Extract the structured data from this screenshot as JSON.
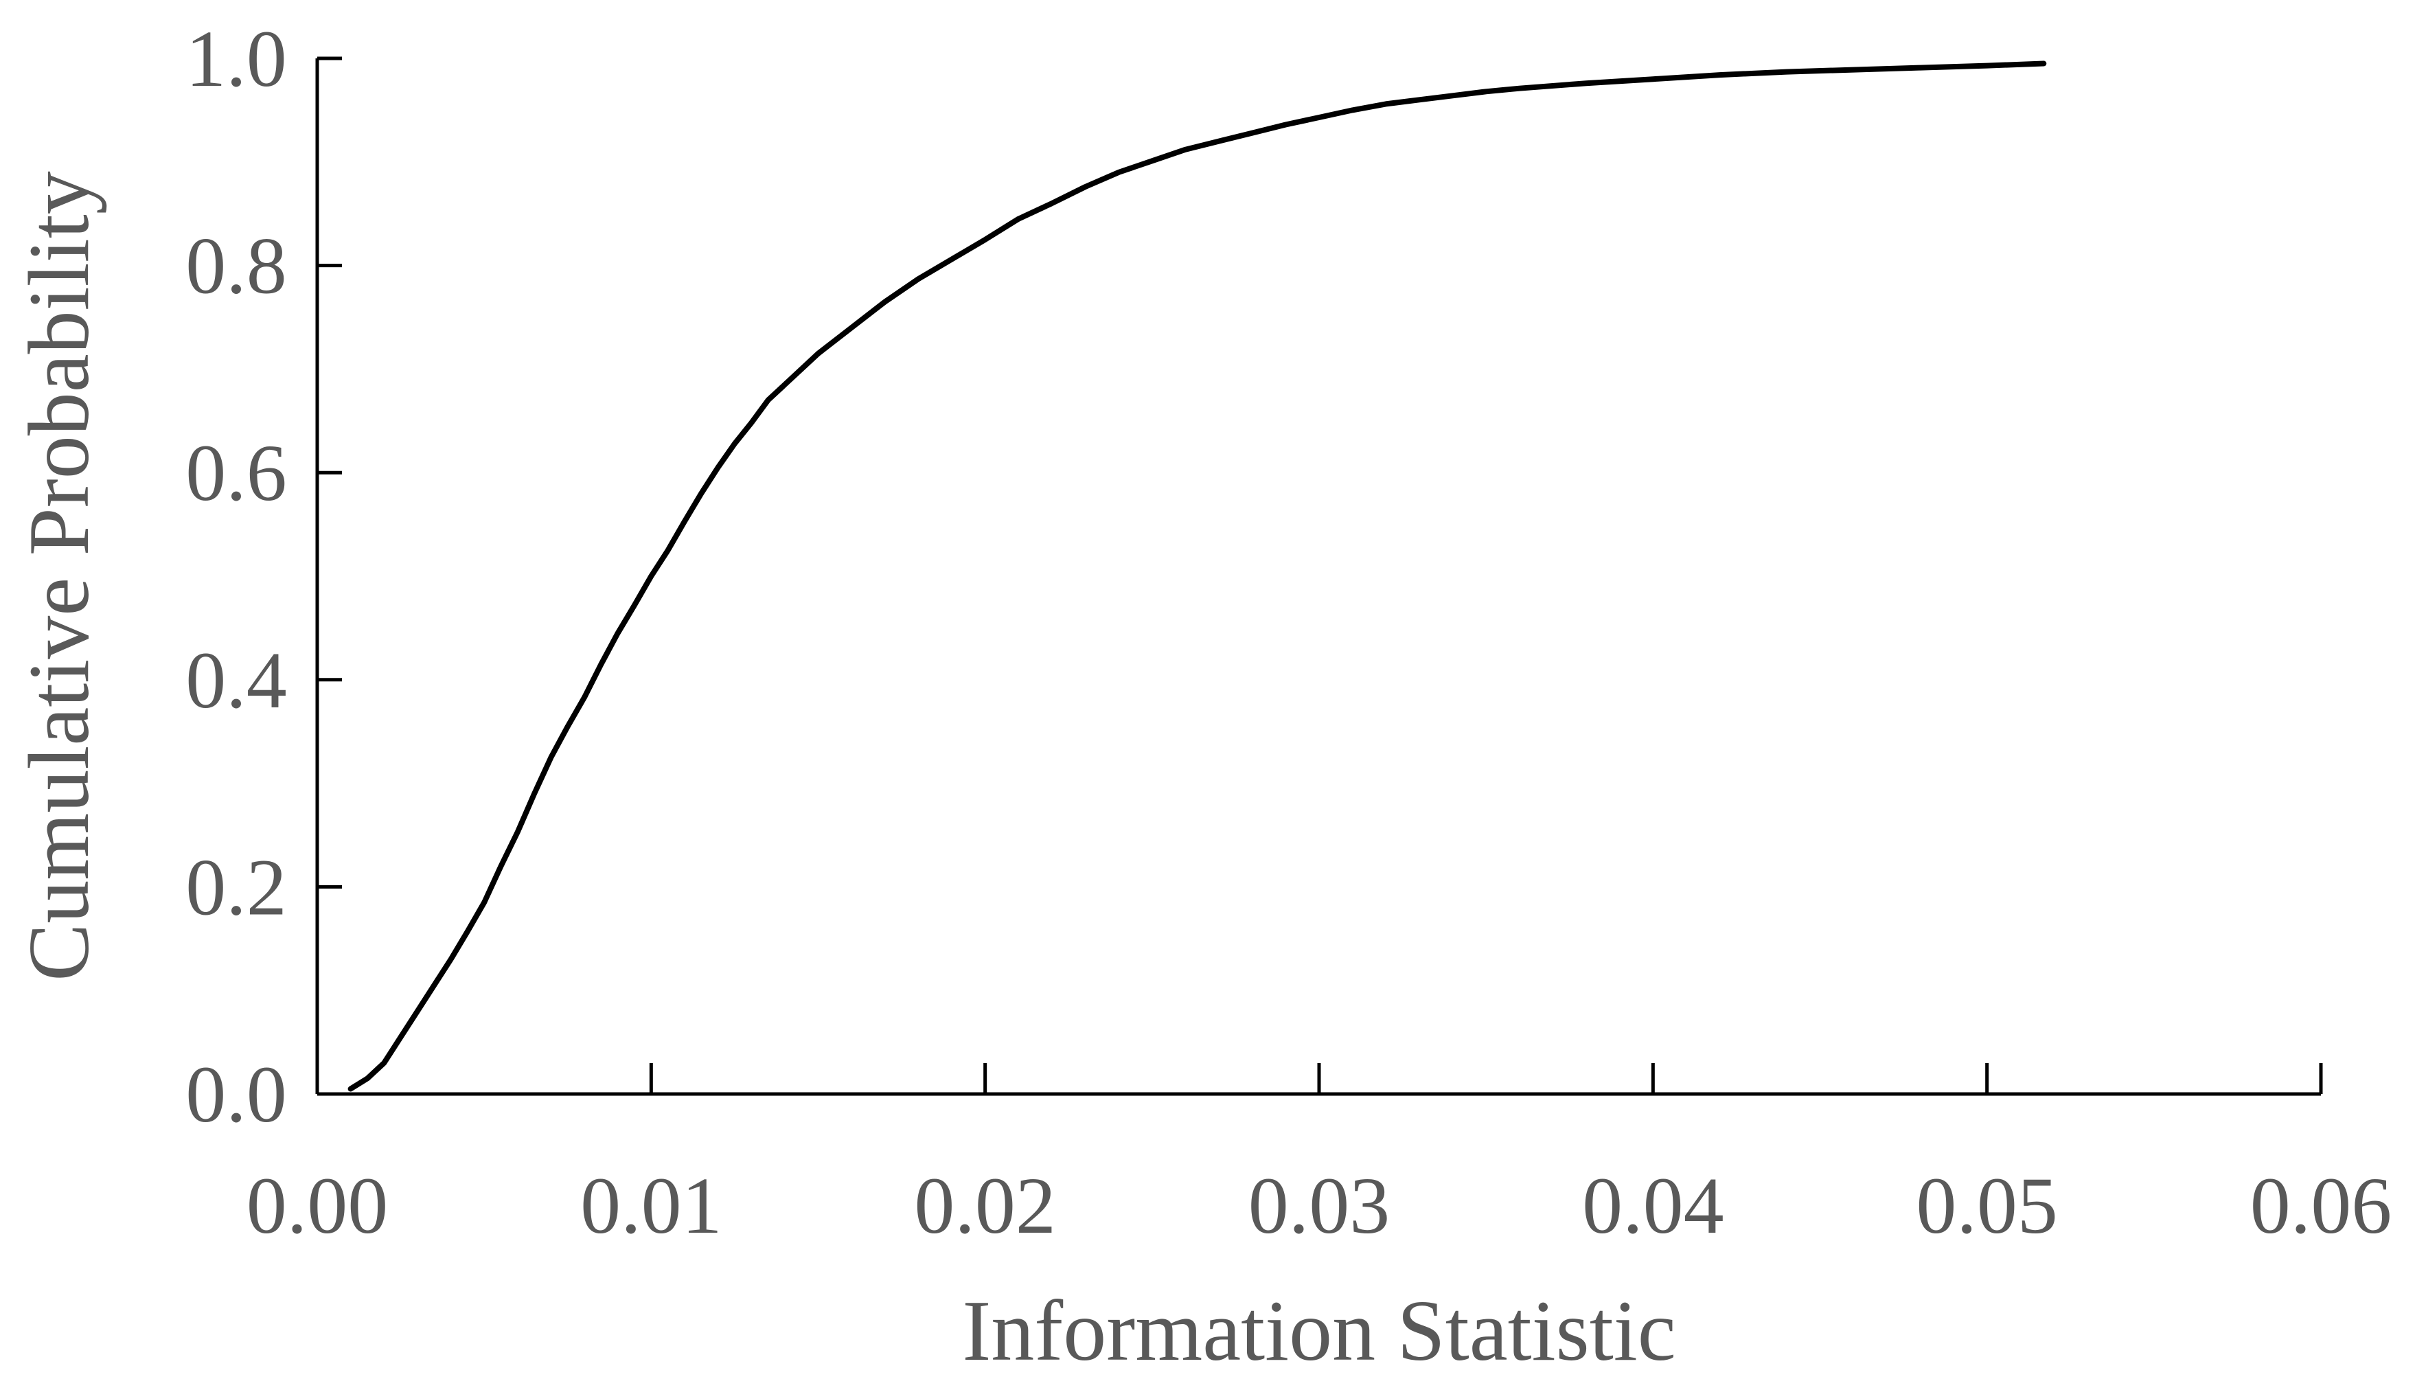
{
  "chart_data": {
    "type": "line",
    "title": "",
    "xlabel": "Information Statistic",
    "ylabel": "Cumulative Probability",
    "xlim": [
      0,
      0.06
    ],
    "ylim": [
      0,
      1.0
    ],
    "x_ticks": [
      0,
      0.01,
      0.02,
      0.03,
      0.04,
      0.05,
      0.06
    ],
    "x_tick_labels": [
      "0.00",
      "0.01",
      "0.02",
      "0.03",
      "0.04",
      "0.05",
      "0.06"
    ],
    "y_ticks": [
      0,
      0.2,
      0.4,
      0.6,
      0.8,
      1.0
    ],
    "y_tick_labels": [
      "0.0",
      "0.2",
      "0.4",
      "0.6",
      "0.8",
      "1.0"
    ],
    "grid": false,
    "legend": "none",
    "colors": {
      "line": "#000000",
      "axis": "#000000",
      "text": "#595959"
    },
    "series": [
      {
        "x": [
          0.001,
          0.0015,
          0.002,
          0.0025,
          0.003,
          0.0035,
          0.004,
          0.0045,
          0.005,
          0.0055,
          0.006,
          0.0065,
          0.007,
          0.0075,
          0.008,
          0.0085,
          0.009,
          0.0095,
          0.01,
          0.0105,
          0.011,
          0.0115,
          0.012,
          0.0125,
          0.013,
          0.0135,
          0.014,
          0.015,
          0.016,
          0.017,
          0.018,
          0.019,
          0.02,
          0.021,
          0.022,
          0.023,
          0.024,
          0.025,
          0.026,
          0.027,
          0.028,
          0.029,
          0.03,
          0.031,
          0.032,
          0.033,
          0.034,
          0.035,
          0.036,
          0.038,
          0.04,
          0.042,
          0.044,
          0.046,
          0.048,
          0.05,
          0.0517
        ],
        "y": [
          0.005,
          0.015,
          0.03,
          0.055,
          0.08,
          0.105,
          0.13,
          0.157,
          0.185,
          0.22,
          0.253,
          0.29,
          0.325,
          0.355,
          0.383,
          0.415,
          0.445,
          0.472,
          0.5,
          0.525,
          0.553,
          0.58,
          0.605,
          0.628,
          0.648,
          0.67,
          0.685,
          0.715,
          0.74,
          0.765,
          0.787,
          0.806,
          0.825,
          0.845,
          0.86,
          0.876,
          0.89,
          0.901,
          0.912,
          0.92,
          0.928,
          0.936,
          0.943,
          0.95,
          0.956,
          0.96,
          0.964,
          0.968,
          0.971,
          0.976,
          0.98,
          0.984,
          0.987,
          0.989,
          0.991,
          0.993,
          0.995
        ]
      }
    ]
  }
}
